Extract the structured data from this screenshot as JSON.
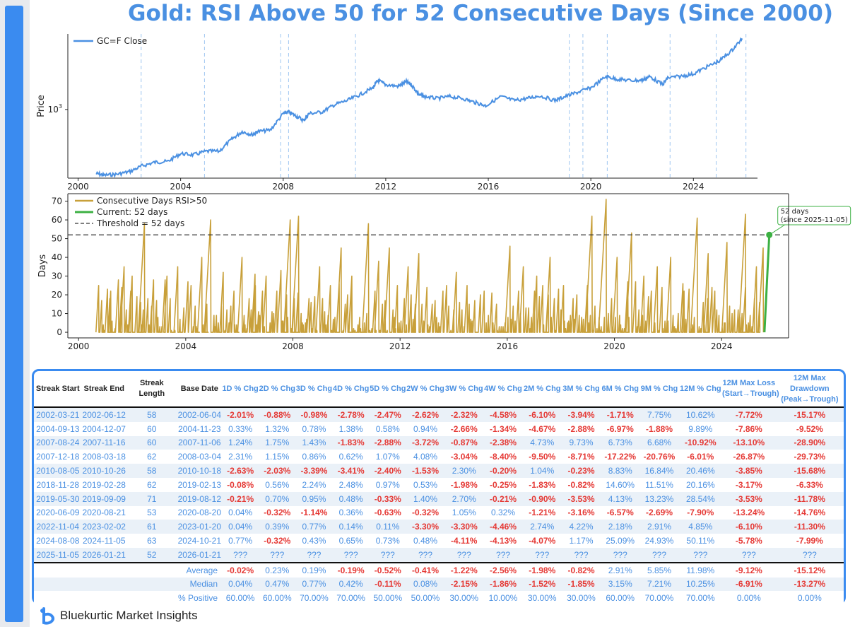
{
  "title": "Gold: RSI Above 50 for 52 Consecutive Days (Since 2000)",
  "brand": "Bluekurtic Market Insights",
  "colors": {
    "price_line": "#4a90e2",
    "days_line": "#c8a03a",
    "current": "#3cb043",
    "threshold": "#333333",
    "negative": "#e53935",
    "positive": "#4a90e2",
    "streak_marker": "#9ec5f0"
  },
  "streak_marker_years": [
    2002.46,
    2004.93,
    2007.9,
    2008.21,
    2010.82,
    2019.16,
    2019.69,
    2020.64,
    2023.09,
    2024.89,
    2026.05
  ],
  "chart_data": [
    {
      "type": "line",
      "legend": [
        "GC=F Close"
      ],
      "ylabel": "Price",
      "yscale": "log",
      "ytick_label": "10",
      "ytick_exp": "3",
      "x_ticks": [
        "2000",
        "2004",
        "2008",
        "2012",
        "2016",
        "2020",
        "2024"
      ],
      "xlim": [
        1999.6,
        2026.5
      ],
      "ylim": [
        250,
        4600
      ],
      "series": [
        {
          "x": [
            2000.7,
            2001.0,
            2001.5,
            2002.0,
            2002.5,
            2003.0,
            2003.5,
            2004.0,
            2004.5,
            2005.0,
            2005.5,
            2006.0,
            2006.4,
            2006.8,
            2007.0,
            2007.5,
            2008.0,
            2008.2,
            2008.5,
            2008.8,
            2009.0,
            2009.5,
            2010.0,
            2010.5,
            2011.0,
            2011.5,
            2011.7,
            2012.0,
            2012.5,
            2012.8,
            2013.0,
            2013.3,
            2013.5,
            2014.0,
            2014.5,
            2015.0,
            2015.5,
            2015.9,
            2016.5,
            2017.0,
            2017.5,
            2018.0,
            2018.6,
            2019.0,
            2019.5,
            2020.0,
            2020.6,
            2021.0,
            2021.5,
            2022.0,
            2022.3,
            2022.8,
            2023.0,
            2023.5,
            2024.0,
            2024.5,
            2025.0,
            2025.5,
            2025.9
          ],
          "values": [
            275,
            265,
            270,
            285,
            320,
            345,
            350,
            410,
            400,
            430,
            430,
            550,
            640,
            600,
            640,
            660,
            920,
            950,
            880,
            800,
            920,
            950,
            1100,
            1200,
            1350,
            1550,
            1800,
            1650,
            1600,
            1750,
            1650,
            1350,
            1300,
            1250,
            1300,
            1250,
            1150,
            1080,
            1300,
            1200,
            1250,
            1320,
            1200,
            1300,
            1420,
            1550,
            1950,
            1850,
            1800,
            1800,
            1950,
            1650,
            1900,
            1950,
            2050,
            2350,
            2650,
            3300,
            4200
          ]
        }
      ]
    },
    {
      "type": "line",
      "legend": [
        "Consecutive Days RSI>50",
        "Current: 52 days",
        "Threshold = 52 days"
      ],
      "ylabel": "Days",
      "y_ticks": [
        0,
        10,
        20,
        30,
        40,
        50,
        60,
        70
      ],
      "x_ticks": [
        "2000",
        "2004",
        "2008",
        "2012",
        "2016",
        "2020",
        "2024"
      ],
      "xlim": [
        1999.6,
        2026.5
      ],
      "ylim": [
        -3,
        74
      ],
      "threshold": 52,
      "annotation": [
        "52 days",
        "(since 2025-11-05)"
      ],
      "current": {
        "x": [
          2025.6,
          2025.78
        ],
        "values": [
          0,
          52
        ]
      },
      "series": [
        {
          "name": "Consecutive Days RSI>50",
          "peaks": [
            [
              2000.75,
              25
            ],
            [
              2001.2,
              22
            ],
            [
              2001.7,
              35
            ],
            [
              2002.0,
              30
            ],
            [
              2002.46,
              58
            ],
            [
              2002.8,
              28
            ],
            [
              2003.3,
              30
            ],
            [
              2003.7,
              35
            ],
            [
              2004.2,
              25
            ],
            [
              2004.6,
              40
            ],
            [
              2004.93,
              60
            ],
            [
              2005.4,
              32
            ],
            [
              2005.8,
              22
            ],
            [
              2006.1,
              40
            ],
            [
              2006.6,
              25
            ],
            [
              2007.0,
              30
            ],
            [
              2007.4,
              22
            ],
            [
              2007.9,
              60
            ],
            [
              2008.21,
              62
            ],
            [
              2008.6,
              18
            ],
            [
              2009.0,
              35
            ],
            [
              2009.4,
              25
            ],
            [
              2009.8,
              45
            ],
            [
              2010.2,
              30
            ],
            [
              2010.82,
              58
            ],
            [
              2011.2,
              38
            ],
            [
              2011.6,
              45
            ],
            [
              2011.9,
              25
            ],
            [
              2012.3,
              35
            ],
            [
              2012.7,
              42
            ],
            [
              2013.2,
              15
            ],
            [
              2013.6,
              22
            ],
            [
              2014.1,
              32
            ],
            [
              2014.5,
              25
            ],
            [
              2015.0,
              20
            ],
            [
              2015.6,
              15
            ],
            [
              2016.1,
              46
            ],
            [
              2016.6,
              35
            ],
            [
              2017.1,
              30
            ],
            [
              2017.6,
              40
            ],
            [
              2018.1,
              25
            ],
            [
              2018.6,
              20
            ],
            [
              2019.16,
              62
            ],
            [
              2019.69,
              71
            ],
            [
              2020.1,
              40
            ],
            [
              2020.64,
              53
            ],
            [
              2021.1,
              30
            ],
            [
              2021.6,
              35
            ],
            [
              2022.1,
              40
            ],
            [
              2022.6,
              22
            ],
            [
              2023.09,
              61
            ],
            [
              2023.5,
              42
            ],
            [
              2024.2,
              48
            ],
            [
              2024.89,
              63
            ],
            [
              2025.3,
              35
            ],
            [
              2025.55,
              45
            ]
          ]
        }
      ]
    }
  ],
  "table": {
    "headers": [
      [
        "Streak Start"
      ],
      [
        "Streak End"
      ],
      [
        "Streak Length"
      ],
      [
        "Base Date"
      ],
      [
        "1D % Chg"
      ],
      [
        "2D % Chg"
      ],
      [
        "3D % Chg"
      ],
      [
        "4D % Chg"
      ],
      [
        "5D % Chg"
      ],
      [
        "2W % Chg"
      ],
      [
        "3W % Chg"
      ],
      [
        "4W % Chg"
      ],
      [
        "2M % Chg"
      ],
      [
        "3M % Chg"
      ],
      [
        "6M % Chg"
      ],
      [
        "9M % Chg"
      ],
      [
        "12M % Chg"
      ],
      [
        "12M Max Loss",
        "(Start→Trough)"
      ],
      [
        "12M Max Drawdown",
        "(Peak→Trough)"
      ]
    ],
    "rows": [
      [
        "2002-03-21",
        "2002-06-12",
        "58",
        "2002-06-04",
        "-2.01%",
        "-0.88%",
        "-0.98%",
        "-2.78%",
        "-2.47%",
        "-2.62%",
        "-2.32%",
        "-4.58%",
        "-6.10%",
        "-3.94%",
        "-1.71%",
        "7.75%",
        "10.62%",
        "-7.72%",
        "-15.17%"
      ],
      [
        "2004-09-13",
        "2004-12-07",
        "60",
        "2004-11-23",
        "0.33%",
        "1.32%",
        "0.78%",
        "1.38%",
        "0.58%",
        "0.94%",
        "-2.66%",
        "-1.34%",
        "-4.67%",
        "-2.88%",
        "-6.97%",
        "-1.88%",
        "9.89%",
        "-7.86%",
        "-9.52%"
      ],
      [
        "2007-08-24",
        "2007-11-16",
        "60",
        "2007-11-06",
        "1.24%",
        "1.75%",
        "1.43%",
        "-1.83%",
        "-2.88%",
        "-3.72%",
        "-0.87%",
        "-2.38%",
        "4.73%",
        "9.73%",
        "6.73%",
        "6.68%",
        "-10.92%",
        "-13.10%",
        "-28.90%"
      ],
      [
        "2007-12-18",
        "2008-03-18",
        "62",
        "2008-03-04",
        "2.31%",
        "1.15%",
        "0.86%",
        "0.62%",
        "1.07%",
        "4.08%",
        "-3.04%",
        "-8.40%",
        "-9.50%",
        "-8.71%",
        "-17.22%",
        "-20.76%",
        "-6.01%",
        "-26.87%",
        "-29.73%"
      ],
      [
        "2010-08-05",
        "2010-10-26",
        "58",
        "2010-10-18",
        "-2.63%",
        "-2.03%",
        "-3.39%",
        "-3.41%",
        "-2.40%",
        "-1.53%",
        "2.30%",
        "-0.20%",
        "1.04%",
        "-0.23%",
        "8.83%",
        "16.84%",
        "20.46%",
        "-3.85%",
        "-15.68%"
      ],
      [
        "2018-11-28",
        "2019-02-28",
        "62",
        "2019-02-13",
        "-0.08%",
        "0.56%",
        "2.24%",
        "2.48%",
        "0.97%",
        "0.53%",
        "-1.98%",
        "-0.25%",
        "-1.83%",
        "-0.82%",
        "14.60%",
        "11.51%",
        "20.16%",
        "-3.17%",
        "-6.33%"
      ],
      [
        "2019-05-30",
        "2019-09-09",
        "71",
        "2019-08-12",
        "-0.21%",
        "0.70%",
        "0.95%",
        "0.48%",
        "-0.33%",
        "1.40%",
        "2.70%",
        "-0.21%",
        "-0.90%",
        "-3.53%",
        "4.13%",
        "13.23%",
        "28.54%",
        "-3.53%",
        "-11.78%"
      ],
      [
        "2020-06-09",
        "2020-08-21",
        "53",
        "2020-08-20",
        "0.04%",
        "-0.32%",
        "-1.14%",
        "0.36%",
        "-0.63%",
        "-0.32%",
        "1.05%",
        "0.32%",
        "-1.21%",
        "-3.16%",
        "-6.57%",
        "-2.69%",
        "-7.90%",
        "-13.24%",
        "-14.76%"
      ],
      [
        "2022-11-04",
        "2023-02-02",
        "61",
        "2023-01-20",
        "0.04%",
        "0.39%",
        "0.77%",
        "0.14%",
        "0.11%",
        "-3.30%",
        "-3.30%",
        "-4.46%",
        "2.74%",
        "4.22%",
        "2.18%",
        "2.91%",
        "4.85%",
        "-6.10%",
        "-11.30%"
      ],
      [
        "2024-08-08",
        "2024-11-05",
        "63",
        "2024-10-21",
        "0.77%",
        "-0.32%",
        "0.43%",
        "0.65%",
        "0.73%",
        "0.48%",
        "-4.11%",
        "-4.13%",
        "-4.07%",
        "1.17%",
        "25.09%",
        "24.93%",
        "50.11%",
        "-5.78%",
        "-7.99%"
      ],
      [
        "2025-11-05",
        "2026-01-21",
        "52",
        "2026-01-21",
        "???",
        "???",
        "???",
        "???",
        "???",
        "???",
        "???",
        "???",
        "???",
        "???",
        "???",
        "???",
        "???",
        "???",
        "???"
      ]
    ],
    "summary": [
      [
        "Average",
        "-0.02%",
        "0.23%",
        "0.19%",
        "-0.19%",
        "-0.52%",
        "-0.41%",
        "-1.22%",
        "-2.56%",
        "-1.98%",
        "-0.82%",
        "2.91%",
        "5.85%",
        "11.98%",
        "-9.12%",
        "-15.12%"
      ],
      [
        "Median",
        "0.04%",
        "0.47%",
        "0.77%",
        "0.42%",
        "-0.11%",
        "0.08%",
        "-2.15%",
        "-1.86%",
        "-1.52%",
        "-1.85%",
        "3.15%",
        "7.21%",
        "10.25%",
        "-6.91%",
        "-13.27%"
      ],
      [
        "% Positive",
        "60.00%",
        "60.00%",
        "70.00%",
        "70.00%",
        "50.00%",
        "50.00%",
        "30.00%",
        "10.00%",
        "30.00%",
        "30.00%",
        "60.00%",
        "70.00%",
        "70.00%",
        "0.00%",
        "0.00%"
      ]
    ]
  }
}
